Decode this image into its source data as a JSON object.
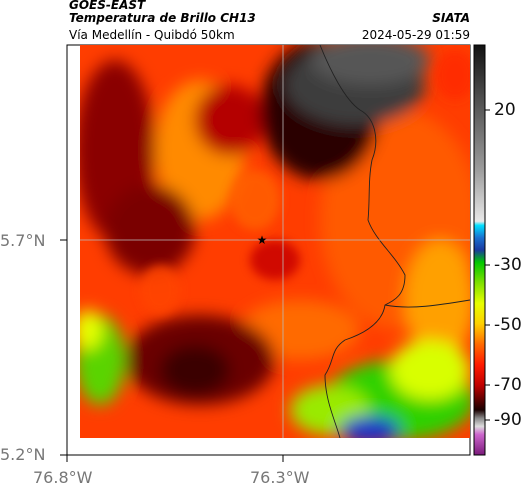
{
  "header": {
    "satellite": "GOES-EAST",
    "product": "Temperatura de Brillo CH13",
    "region": "Vía Medellín - Quibdó 50km",
    "agency": "SIATA",
    "timestamp": "2024-05-29 01:59"
  },
  "axes": {
    "lat_ticks": [
      "5.7°N",
      "5.2°N"
    ],
    "lon_ticks": [
      "76.8°W",
      "76.3°W"
    ]
  },
  "colorbar": {
    "ticks": [
      "20",
      "-30",
      "-50",
      "-70",
      "-90"
    ],
    "units": ""
  },
  "marker": {
    "symbol": "★",
    "type": "city-star"
  },
  "colors": {
    "warm": "#ff3a00",
    "mid": "#d41a00",
    "cold": "#4a0000",
    "coldest_cloud": "#555555",
    "green": "#2ed100",
    "yellow": "#e6ff00",
    "blue": "#1e30c8"
  }
}
